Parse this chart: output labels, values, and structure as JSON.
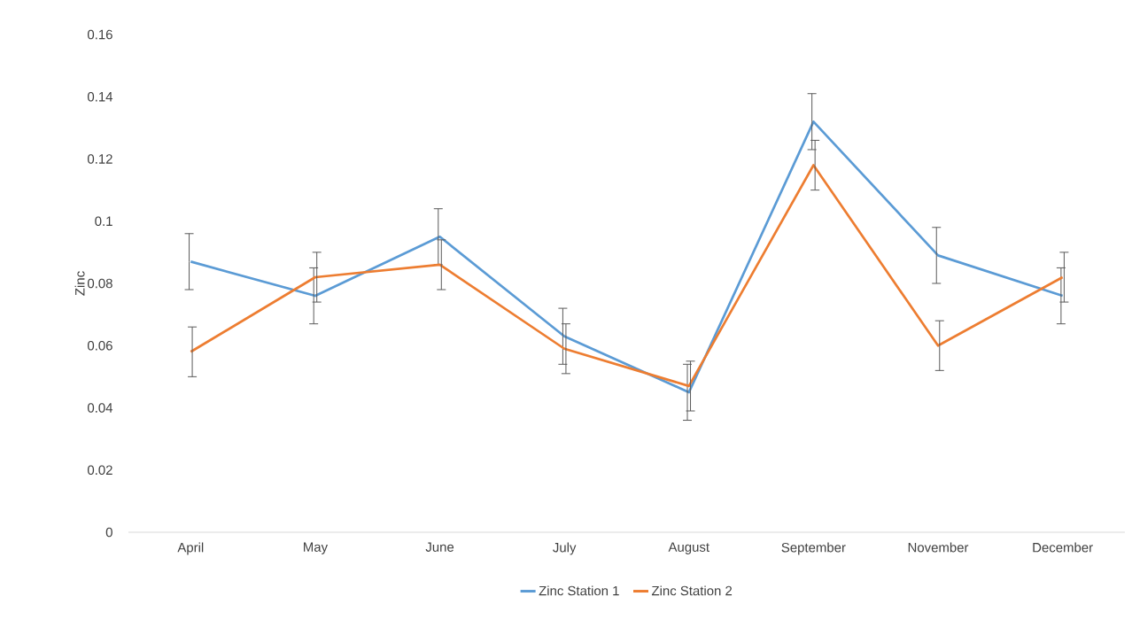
{
  "chart_data": {
    "type": "line",
    "ylabel": "Zinc",
    "categories": [
      "April",
      "May",
      "June",
      "July",
      "August",
      "September",
      "November",
      "December"
    ],
    "series": [
      {
        "name": "Zinc Station 1",
        "color": "#5b9bd5",
        "values": [
          0.087,
          0.076,
          0.095,
          0.063,
          0.045,
          0.132,
          0.089,
          0.076
        ],
        "errors": [
          0.009,
          0.009,
          0.009,
          0.009,
          0.009,
          0.009,
          0.009,
          0.009
        ]
      },
      {
        "name": "Zinc Station 2",
        "color": "#ed7d31",
        "values": [
          0.058,
          0.082,
          0.086,
          0.059,
          0.047,
          0.118,
          0.06,
          0.082
        ],
        "errors": [
          0.008,
          0.008,
          0.008,
          0.008,
          0.008,
          0.008,
          0.008,
          0.008
        ]
      }
    ],
    "ylim": [
      0,
      0.16
    ],
    "yticks": [
      0,
      0.02,
      0.04,
      0.06,
      0.08,
      0.1,
      0.12,
      0.14,
      0.16
    ],
    "legend": "bottom"
  }
}
